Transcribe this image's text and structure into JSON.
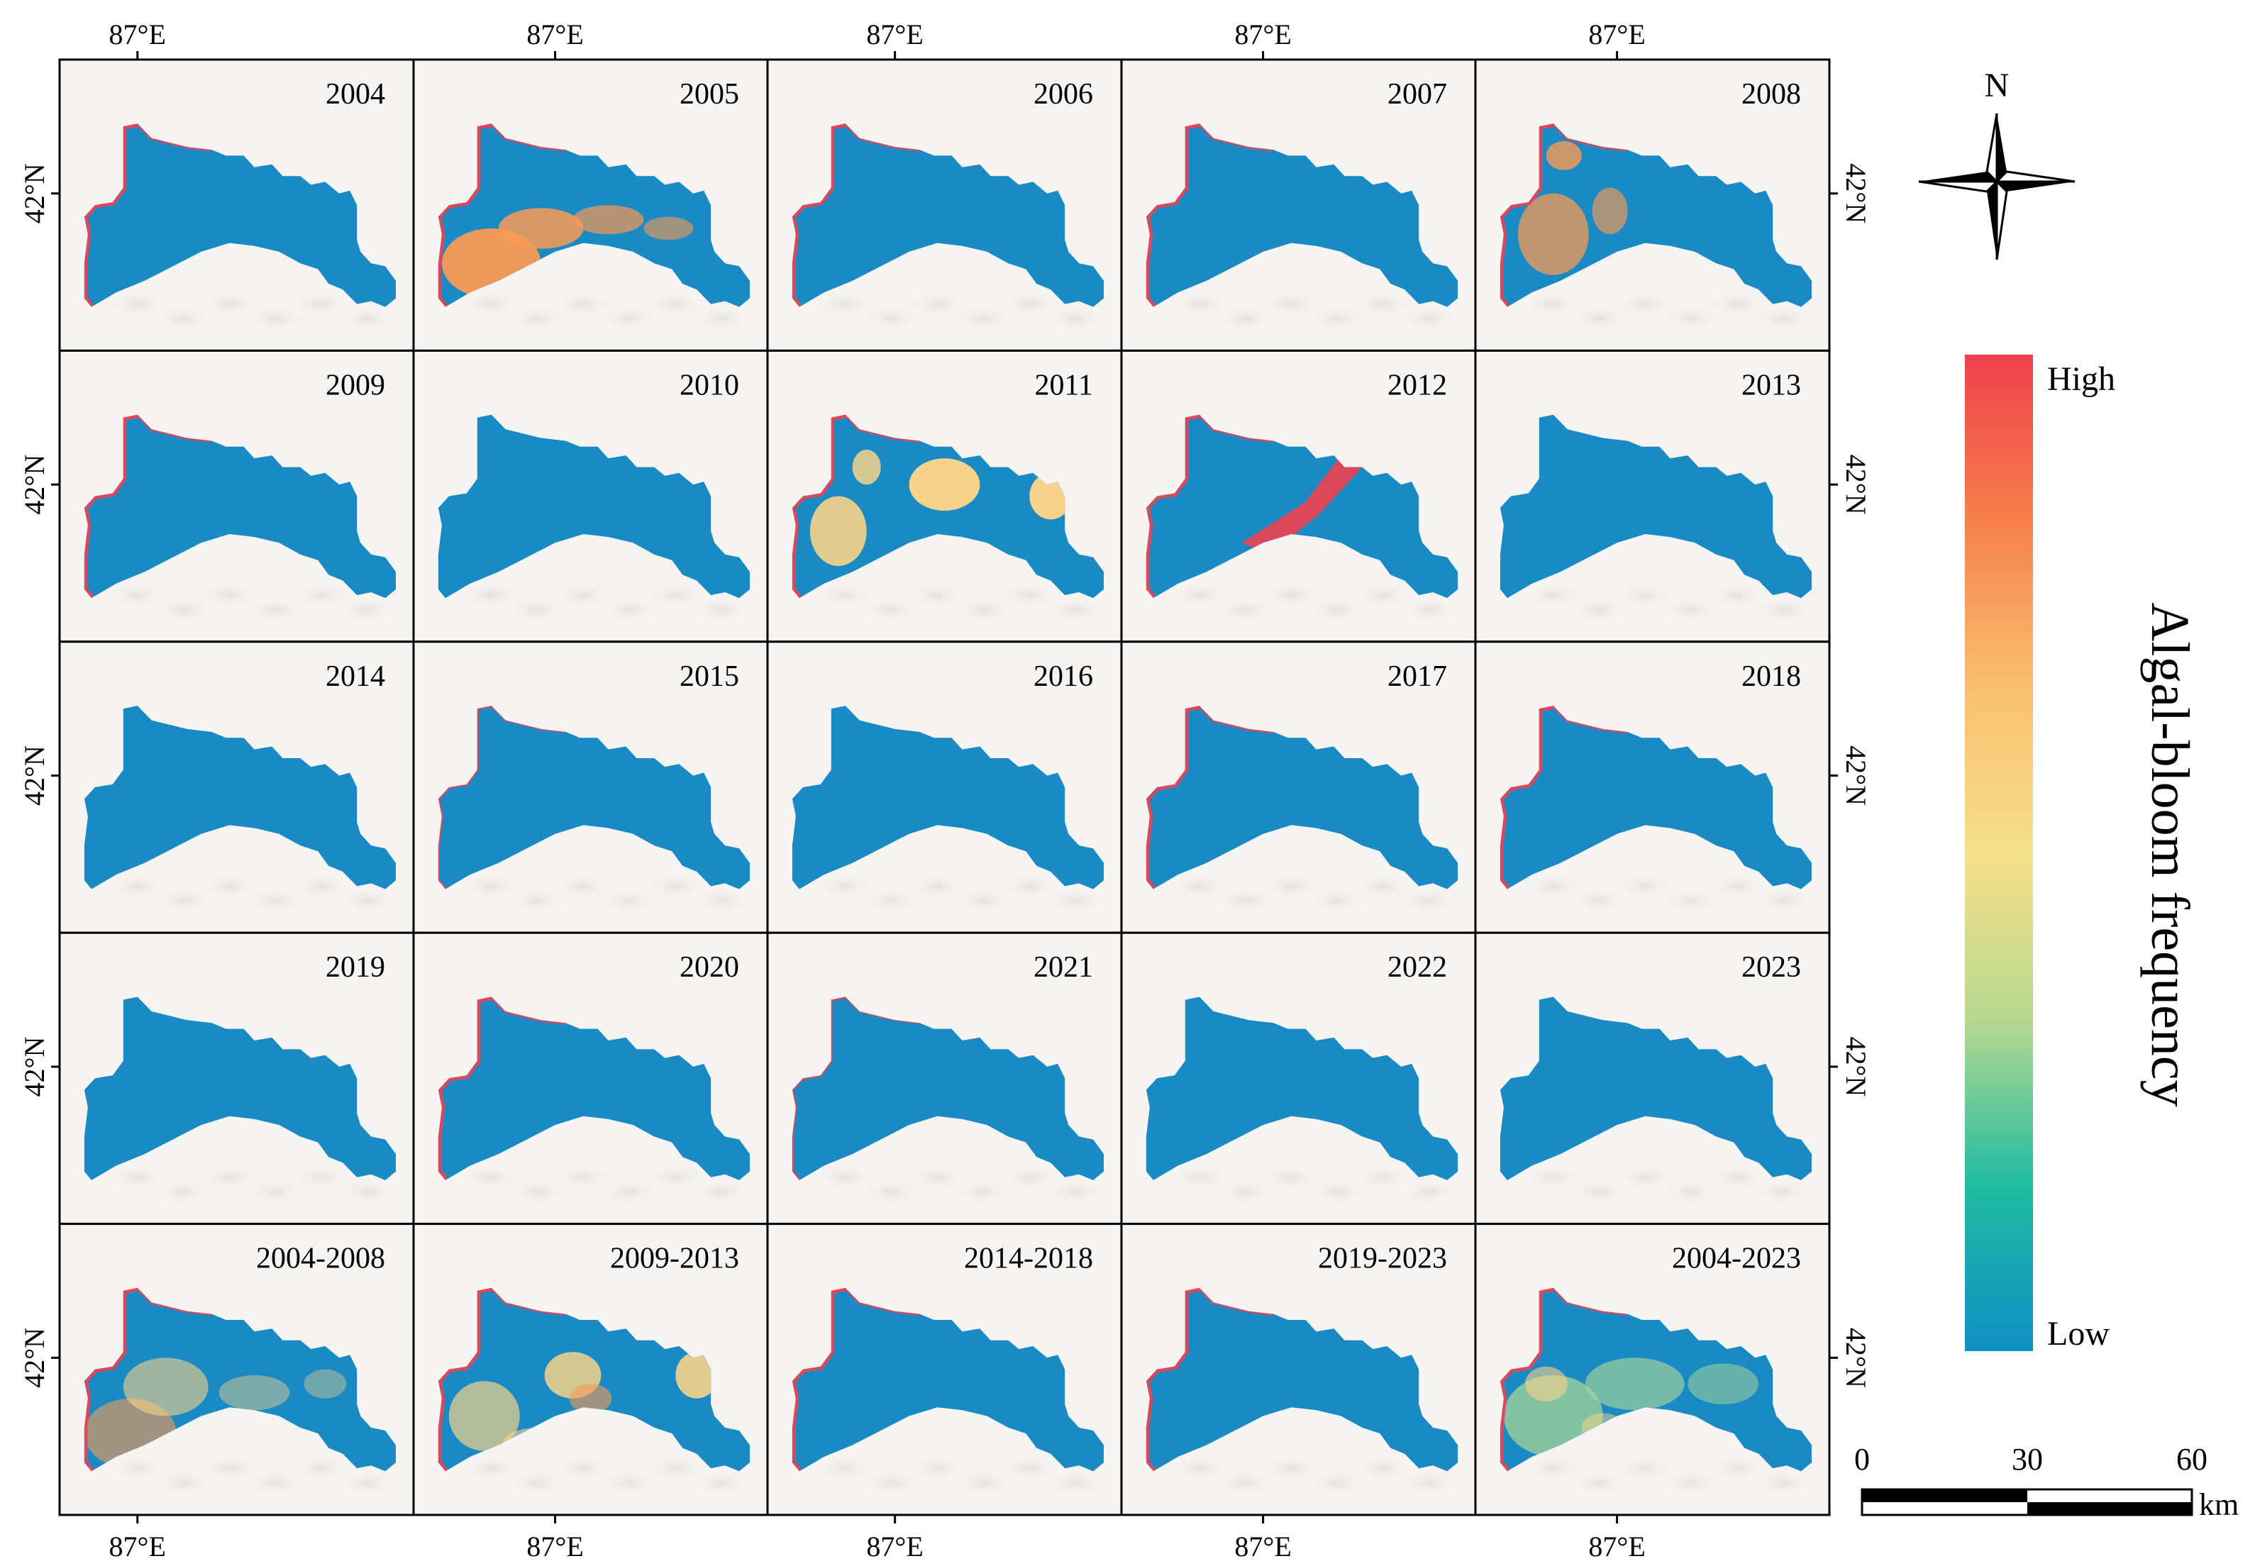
{
  "panels": [
    {
      "label": "2004",
      "pattern": "edge-red"
    },
    {
      "label": "2005",
      "pattern": "orange-west"
    },
    {
      "label": "2006",
      "pattern": "edge-red"
    },
    {
      "label": "2007",
      "pattern": "edge-red"
    },
    {
      "label": "2008",
      "pattern": "orange-patches"
    },
    {
      "label": "2009",
      "pattern": "edge-red"
    },
    {
      "label": "2010",
      "pattern": "plain"
    },
    {
      "label": "2011",
      "pattern": "yellow-patches"
    },
    {
      "label": "2012",
      "pattern": "red-diagonal"
    },
    {
      "label": "2013",
      "pattern": "plain"
    },
    {
      "label": "2014",
      "pattern": "plain"
    },
    {
      "label": "2015",
      "pattern": "edge-red-light"
    },
    {
      "label": "2016",
      "pattern": "plain"
    },
    {
      "label": "2017",
      "pattern": "edge-red"
    },
    {
      "label": "2018",
      "pattern": "edge-red"
    },
    {
      "label": "2019",
      "pattern": "plain"
    },
    {
      "label": "2020",
      "pattern": "edge-red"
    },
    {
      "label": "2021",
      "pattern": "edge-red-light"
    },
    {
      "label": "2022",
      "pattern": "plain"
    },
    {
      "label": "2023",
      "pattern": "plain"
    },
    {
      "label": "2004-2008",
      "pattern": "mixed-yellow"
    },
    {
      "label": "2009-2013",
      "pattern": "mixed-yellow-east"
    },
    {
      "label": "2014-2018",
      "pattern": "edge-red"
    },
    {
      "label": "2019-2023",
      "pattern": "edge-red"
    },
    {
      "label": "2004-2023",
      "pattern": "mixed-green"
    }
  ],
  "axes": {
    "lon_label": "87°E",
    "lat_label": "42°N"
  },
  "legend": {
    "title": "Algal-bloom frequency",
    "high_label": "High",
    "low_label": "Low",
    "gradient_colors": [
      "#f0404e",
      "#f6804a",
      "#f8c070",
      "#f5e08a",
      "#b8d890",
      "#20bca0",
      "#1090c4"
    ]
  },
  "north_arrow": {
    "label": "N"
  },
  "scale_bar": {
    "ticks": [
      "0",
      "30",
      "60"
    ],
    "unit": "km"
  },
  "colors": {
    "water": "#1a8ac4",
    "bloom_high": "#f04050",
    "bloom_orange": "#f89a55",
    "bloom_yellow": "#f6d38a",
    "bloom_green": "#a8d49a",
    "land": "#f6f4f2"
  }
}
